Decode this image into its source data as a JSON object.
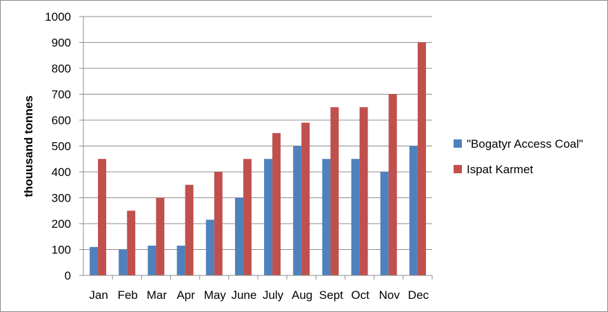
{
  "chart_data": {
    "type": "bar",
    "title": "",
    "xlabel": "",
    "ylabel": "thouusand tonnes",
    "ylim": [
      0,
      1000
    ],
    "yticks": [
      0,
      100,
      200,
      300,
      400,
      500,
      600,
      700,
      800,
      900,
      1000
    ],
    "grid": true,
    "legend_position": "right",
    "categories": [
      "Jan",
      "Feb",
      "Mar",
      "Apr",
      "May",
      "June",
      "July",
      "Aug",
      "Sept",
      "Oct",
      "Nov",
      "Dec"
    ],
    "series": [
      {
        "name": "\"Bogatyr Access Coal\"",
        "color": "#4f81bd",
        "values": [
          110,
          100,
          115,
          115,
          215,
          300,
          450,
          500,
          450,
          450,
          400,
          500
        ]
      },
      {
        "name": "Ispat Karmet",
        "color": "#c0504d",
        "values": [
          450,
          250,
          300,
          350,
          400,
          450,
          550,
          590,
          650,
          650,
          700,
          900
        ]
      }
    ]
  }
}
